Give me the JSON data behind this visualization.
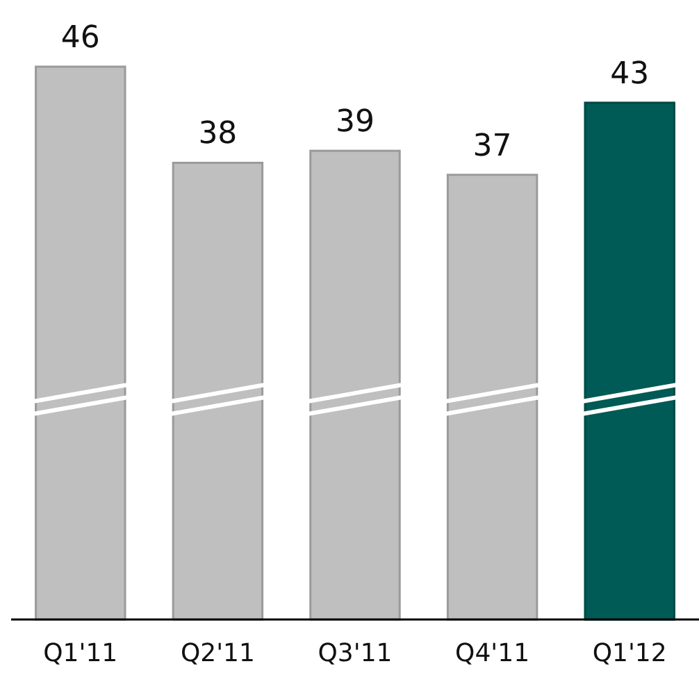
{
  "chart_data": {
    "type": "bar",
    "categories": [
      "Q1'11",
      "Q2'11",
      "Q3'11",
      "Q4'11",
      "Q1'12"
    ],
    "values": [
      46,
      38,
      39,
      37,
      43
    ],
    "colors": [
      "#bfbfbf",
      "#bfbfbf",
      "#bfbfbf",
      "#bfbfbf",
      "#005a55"
    ],
    "data_labels": true
  }
}
